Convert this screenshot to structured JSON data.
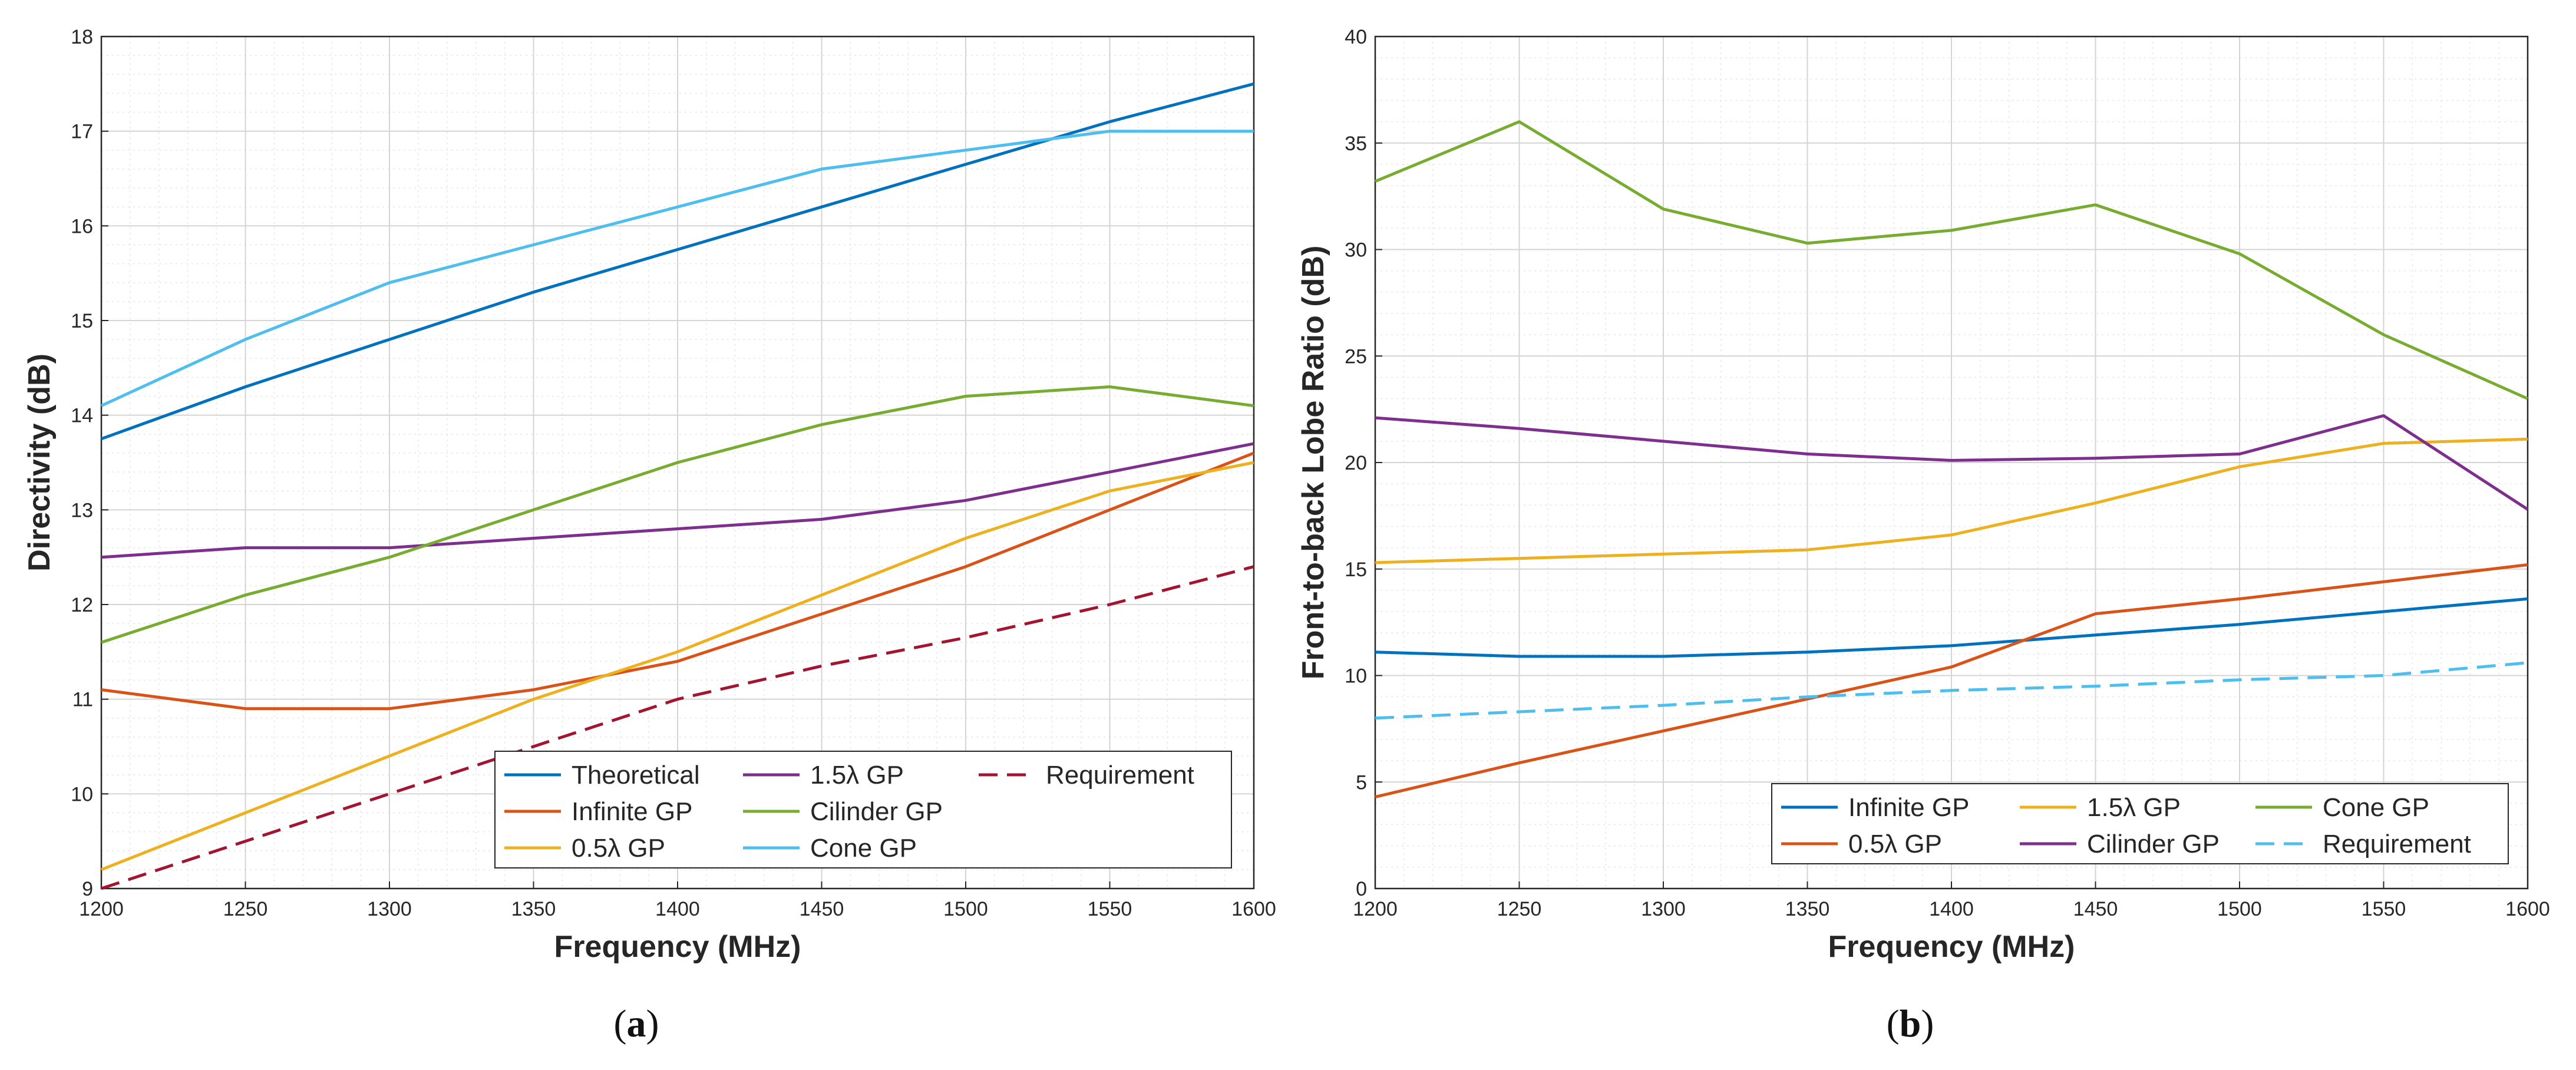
{
  "chart_data": [
    {
      "type": "line",
      "panel": "a",
      "caption_open": "(",
      "caption_letter": "a",
      "caption_close": ")",
      "xlabel": "Frequency (MHz)",
      "ylabel": "Directivity (dB)",
      "xlim": [
        1200,
        1600
      ],
      "ylim": [
        9,
        18
      ],
      "xticks": [
        1200,
        1250,
        1300,
        1350,
        1400,
        1450,
        1500,
        1550,
        1600
      ],
      "yticks": [
        9,
        10,
        11,
        12,
        13,
        14,
        15,
        16,
        17,
        18
      ],
      "grid": true,
      "legend": {
        "placement": "bottom-right",
        "columns": 3
      },
      "x": [
        1200,
        1250,
        1300,
        1350,
        1400,
        1450,
        1500,
        1550,
        1600
      ],
      "series": [
        {
          "name": "Theoretical",
          "color": "#0072BD",
          "dash": false,
          "values": [
            13.75,
            14.3,
            14.8,
            15.3,
            15.75,
            16.2,
            16.65,
            17.1,
            17.5
          ]
        },
        {
          "name": "Infinite GP",
          "color": "#D95319",
          "dash": false,
          "values": [
            11.1,
            10.9,
            10.9,
            11.1,
            11.4,
            11.9,
            12.4,
            13.0,
            13.6
          ]
        },
        {
          "name": "0.5λ GP",
          "color": "#EDB120",
          "dash": false,
          "values": [
            9.2,
            9.8,
            10.4,
            11.0,
            11.5,
            12.1,
            12.7,
            13.2,
            13.5
          ]
        },
        {
          "name": "1.5λ GP",
          "color": "#7E2F8E",
          "dash": false,
          "values": [
            12.5,
            12.6,
            12.6,
            12.7,
            12.8,
            12.9,
            13.1,
            13.4,
            13.7
          ]
        },
        {
          "name": "Cilinder GP",
          "color": "#77AC30",
          "dash": false,
          "values": [
            11.6,
            12.1,
            12.5,
            13.0,
            13.5,
            13.9,
            14.2,
            14.3,
            14.1
          ]
        },
        {
          "name": "Cone GP",
          "color": "#4DBEEE",
          "dash": false,
          "values": [
            14.1,
            14.8,
            15.4,
            15.8,
            16.2,
            16.6,
            16.8,
            17.0,
            17.0
          ]
        },
        {
          "name": "Requirement",
          "color": "#A2142F",
          "dash": true,
          "values": [
            9.0,
            9.5,
            10.0,
            10.5,
            11.0,
            11.35,
            11.65,
            12.0,
            12.4
          ]
        }
      ]
    },
    {
      "type": "line",
      "panel": "b",
      "caption_open": "(",
      "caption_letter": "b",
      "caption_close": ")",
      "xlabel": "Frequency (MHz)",
      "ylabel": "Front-to-back Lobe Ratio (dB)",
      "xlim": [
        1200,
        1600
      ],
      "ylim": [
        0,
        40
      ],
      "xticks": [
        1200,
        1250,
        1300,
        1350,
        1400,
        1450,
        1500,
        1550,
        1600
      ],
      "yticks": [
        0,
        5,
        10,
        15,
        20,
        25,
        30,
        35,
        40
      ],
      "grid": true,
      "legend": {
        "placement": "bottom-right",
        "columns": 3
      },
      "x": [
        1200,
        1250,
        1300,
        1350,
        1400,
        1450,
        1500,
        1550,
        1600
      ],
      "series": [
        {
          "name": "Infinite GP",
          "color": "#0072BD",
          "dash": false,
          "values": [
            11.1,
            10.9,
            10.9,
            11.1,
            11.4,
            11.9,
            12.4,
            13.0,
            13.6
          ]
        },
        {
          "name": "0.5λ GP",
          "color": "#D95319",
          "dash": false,
          "values": [
            4.3,
            5.9,
            7.4,
            8.9,
            10.4,
            12.9,
            13.6,
            14.4,
            15.2
          ]
        },
        {
          "name": "1.5λ GP",
          "color": "#EDB120",
          "dash": false,
          "values": [
            15.3,
            15.5,
            15.7,
            15.9,
            16.6,
            18.1,
            19.8,
            20.9,
            21.1
          ]
        },
        {
          "name": "Cilinder GP",
          "color": "#7E2F8E",
          "dash": false,
          "values": [
            22.1,
            21.6,
            21.0,
            20.4,
            20.1,
            20.2,
            20.4,
            22.2,
            17.8
          ]
        },
        {
          "name": "Cone GP",
          "color": "#77AC30",
          "dash": false,
          "values": [
            33.2,
            36.0,
            31.9,
            30.3,
            30.9,
            32.1,
            29.8,
            26.0,
            23.0
          ]
        },
        {
          "name": "Requirement",
          "color": "#4DBEEE",
          "dash": true,
          "values": [
            8.0,
            8.3,
            8.6,
            9.0,
            9.3,
            9.5,
            9.8,
            10.0,
            10.6
          ]
        }
      ]
    }
  ]
}
